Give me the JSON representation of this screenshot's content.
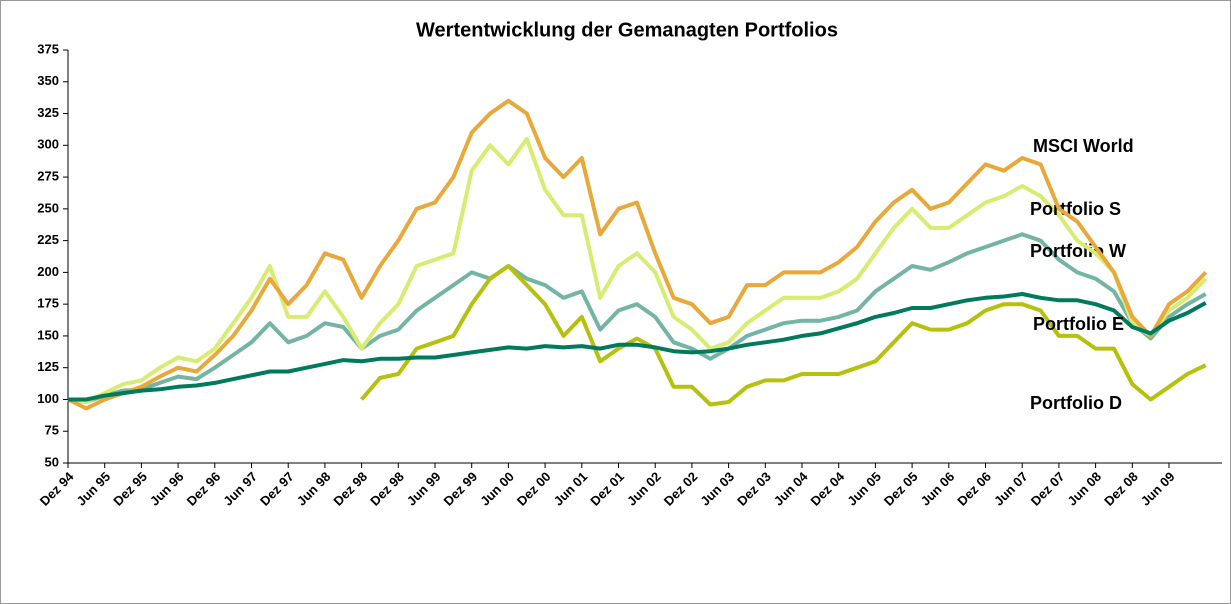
{
  "chart_data": {
    "type": "line",
    "title": "Wertentwicklung der Gemanagten Portfolios",
    "categories": [
      "Dez 94",
      null,
      "Jun 95",
      null,
      "Dez 95",
      null,
      "Jun 96",
      null,
      "Dez 96",
      null,
      "Jun 97",
      null,
      "Dez 97",
      null,
      "Jun 98",
      null,
      "Dez 98",
      null,
      "Dez 98",
      null,
      "Jun 99",
      null,
      "Dez 99",
      null,
      "Jun 00",
      null,
      "Dez 00",
      null,
      "Jun 01",
      null,
      "Dez 01",
      null,
      "Jun 02",
      null,
      "Dez 02",
      null,
      "Jun 03",
      null,
      "Dez 03",
      null,
      "Jun 04",
      null,
      "Dez 04",
      null,
      "Jun 05",
      null,
      "Dez 05",
      null,
      "Jun 06",
      null,
      "Dez 06",
      null,
      "Jun 07",
      null,
      "Dez 07",
      null,
      "Jun 08",
      null,
      "Dez 08",
      null,
      "Jun 09",
      null,
      null
    ],
    "ylim": [
      50,
      375
    ],
    "yticks": [
      50,
      75,
      100,
      125,
      150,
      175,
      200,
      225,
      250,
      275,
      300,
      325,
      350,
      375
    ],
    "grid": false,
    "series": [
      {
        "name": "MSCI World",
        "color": "#e8a83a",
        "values": [
          100,
          93,
          100,
          105,
          110,
          118,
          125,
          122,
          135,
          150,
          170,
          195,
          175,
          190,
          215,
          210,
          180,
          205,
          225,
          250,
          255,
          275,
          310,
          325,
          335,
          325,
          290,
          275,
          290,
          230,
          250,
          255,
          215,
          180,
          175,
          160,
          165,
          190,
          190,
          200,
          200,
          200,
          208,
          220,
          240,
          255,
          265,
          250,
          255,
          270,
          285,
          280,
          290,
          285,
          250,
          240,
          220,
          200,
          165,
          150,
          175,
          185,
          200
        ]
      },
      {
        "name": "Portfolio S",
        "color": "#d8ec72",
        "values": [
          100,
          98,
          105,
          112,
          115,
          125,
          133,
          130,
          140,
          160,
          180,
          205,
          165,
          165,
          185,
          165,
          140,
          160,
          175,
          205,
          210,
          215,
          280,
          300,
          285,
          305,
          265,
          245,
          245,
          180,
          205,
          215,
          200,
          165,
          155,
          140,
          145,
          160,
          170,
          180,
          180,
          180,
          185,
          195,
          215,
          235,
          250,
          235,
          235,
          245,
          255,
          260,
          268,
          260,
          245,
          225,
          215,
          200,
          160,
          150,
          170,
          180,
          195
        ]
      },
      {
        "name": "Portfolio W",
        "color": "#74b4a4",
        "values": [
          100,
          98,
          103,
          107,
          108,
          113,
          118,
          116,
          125,
          135,
          145,
          160,
          145,
          150,
          160,
          157,
          140,
          150,
          155,
          170,
          180,
          190,
          200,
          195,
          205,
          195,
          190,
          180,
          185,
          155,
          170,
          175,
          165,
          145,
          140,
          132,
          140,
          150,
          155,
          160,
          162,
          162,
          165,
          170,
          185,
          195,
          205,
          202,
          208,
          215,
          220,
          225,
          230,
          225,
          210,
          200,
          195,
          185,
          160,
          148,
          165,
          175,
          183
        ]
      },
      {
        "name": "Portfolio E",
        "color": "#00795c",
        "values": [
          100,
          100,
          103,
          105,
          107,
          108,
          110,
          111,
          113,
          116,
          119,
          122,
          122,
          125,
          128,
          131,
          130,
          132,
          132,
          133,
          133,
          135,
          137,
          139,
          141,
          140,
          142,
          141,
          142,
          140,
          143,
          143,
          141,
          138,
          137,
          138,
          140,
          143,
          145,
          147,
          150,
          152,
          156,
          160,
          165,
          168,
          172,
          172,
          175,
          178,
          180,
          181,
          183,
          180,
          178,
          178,
          175,
          170,
          157,
          152,
          162,
          168,
          176
        ]
      },
      {
        "name": "Portfolio D",
        "color": "#b5c10c",
        "values": [
          null,
          null,
          null,
          null,
          null,
          null,
          null,
          null,
          null,
          null,
          null,
          null,
          null,
          null,
          null,
          null,
          100,
          117,
          120,
          140,
          145,
          150,
          175,
          195,
          205,
          190,
          175,
          150,
          165,
          130,
          140,
          148,
          140,
          110,
          110,
          96,
          98,
          110,
          115,
          115,
          120,
          120,
          120,
          125,
          130,
          145,
          160,
          155,
          155,
          160,
          170,
          175,
          175,
          170,
          150,
          150,
          140,
          140,
          112,
          100,
          110,
          120,
          127
        ]
      }
    ]
  }
}
